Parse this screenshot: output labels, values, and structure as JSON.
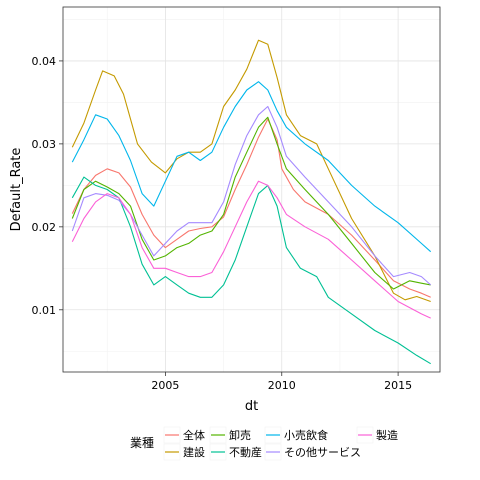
{
  "chart_data": {
    "type": "line",
    "xlabel": "dt",
    "ylabel": "Default_Rate",
    "xlim": [
      2000.6,
      2016.8
    ],
    "ylim": [
      0.0025,
      0.0465
    ],
    "x_ticks": [
      2005,
      2010,
      2015
    ],
    "x_tick_labels": [
      "2005",
      "2010",
      "2015"
    ],
    "y_ticks": [
      0.01,
      0.02,
      0.03,
      0.04
    ],
    "y_tick_labels": [
      "0.01",
      "0.02",
      "0.03",
      "0.04"
    ],
    "grid": true,
    "legend": {
      "title": "業種",
      "position": "bottom"
    },
    "series": [
      {
        "name": "全体",
        "color": "#F8766D",
        "points": [
          [
            2001.0,
            0.0216
          ],
          [
            2001.5,
            0.0245
          ],
          [
            2002.0,
            0.0262
          ],
          [
            2002.5,
            0.027
          ],
          [
            2003.0,
            0.0265
          ],
          [
            2003.5,
            0.0248
          ],
          [
            2004.0,
            0.0215
          ],
          [
            2004.5,
            0.019
          ],
          [
            2005.0,
            0.0175
          ],
          [
            2005.5,
            0.0185
          ],
          [
            2006.0,
            0.0195
          ],
          [
            2006.5,
            0.0198
          ],
          [
            2007.0,
            0.02
          ],
          [
            2007.5,
            0.0212
          ],
          [
            2008.0,
            0.0245
          ],
          [
            2008.5,
            0.0275
          ],
          [
            2009.0,
            0.0308
          ],
          [
            2009.4,
            0.033
          ],
          [
            2009.8,
            0.0305
          ],
          [
            2010.0,
            0.027
          ],
          [
            2010.5,
            0.0245
          ],
          [
            2011.0,
            0.023
          ],
          [
            2012.0,
            0.0215
          ],
          [
            2013.0,
            0.019
          ],
          [
            2014.0,
            0.016
          ],
          [
            2014.8,
            0.0135
          ],
          [
            2015.5,
            0.0125
          ],
          [
            2016.0,
            0.012
          ],
          [
            2016.4,
            0.0115
          ]
        ]
      },
      {
        "name": "建設",
        "color": "#C49A00",
        "points": [
          [
            2001.0,
            0.0296
          ],
          [
            2001.5,
            0.0325
          ],
          [
            2002.0,
            0.0365
          ],
          [
            2002.3,
            0.0388
          ],
          [
            2002.8,
            0.0382
          ],
          [
            2003.2,
            0.036
          ],
          [
            2003.8,
            0.03
          ],
          [
            2004.4,
            0.0278
          ],
          [
            2005.0,
            0.0265
          ],
          [
            2005.5,
            0.0282
          ],
          [
            2006.0,
            0.029
          ],
          [
            2006.5,
            0.029
          ],
          [
            2007.0,
            0.03
          ],
          [
            2007.5,
            0.0345
          ],
          [
            2008.0,
            0.0365
          ],
          [
            2008.5,
            0.039
          ],
          [
            2009.0,
            0.0425
          ],
          [
            2009.4,
            0.042
          ],
          [
            2009.8,
            0.038
          ],
          [
            2010.2,
            0.0335
          ],
          [
            2010.8,
            0.031
          ],
          [
            2011.5,
            0.03
          ],
          [
            2012.0,
            0.027
          ],
          [
            2013.0,
            0.021
          ],
          [
            2014.0,
            0.0165
          ],
          [
            2014.8,
            0.012
          ],
          [
            2015.3,
            0.0112
          ],
          [
            2015.8,
            0.0116
          ],
          [
            2016.4,
            0.011
          ]
        ]
      },
      {
        "name": "卸売",
        "color": "#53B400",
        "points": [
          [
            2001.0,
            0.021
          ],
          [
            2001.5,
            0.0245
          ],
          [
            2002.0,
            0.0255
          ],
          [
            2002.5,
            0.0248
          ],
          [
            2003.0,
            0.024
          ],
          [
            2003.5,
            0.0225
          ],
          [
            2004.0,
            0.0185
          ],
          [
            2004.5,
            0.016
          ],
          [
            2005.0,
            0.0165
          ],
          [
            2005.5,
            0.0175
          ],
          [
            2006.0,
            0.018
          ],
          [
            2006.5,
            0.019
          ],
          [
            2007.0,
            0.0195
          ],
          [
            2007.5,
            0.0215
          ],
          [
            2008.0,
            0.026
          ],
          [
            2008.5,
            0.029
          ],
          [
            2009.0,
            0.032
          ],
          [
            2009.4,
            0.0332
          ],
          [
            2009.8,
            0.03
          ],
          [
            2010.2,
            0.027
          ],
          [
            2011.0,
            0.0245
          ],
          [
            2012.0,
            0.0215
          ],
          [
            2013.0,
            0.018
          ],
          [
            2014.0,
            0.0145
          ],
          [
            2014.8,
            0.0125
          ],
          [
            2015.5,
            0.0135
          ],
          [
            2016.0,
            0.0132
          ],
          [
            2016.4,
            0.013
          ]
        ]
      },
      {
        "name": "不動産",
        "color": "#00C094",
        "points": [
          [
            2001.0,
            0.0235
          ],
          [
            2001.5,
            0.026
          ],
          [
            2002.0,
            0.025
          ],
          [
            2002.5,
            0.0245
          ],
          [
            2003.0,
            0.0235
          ],
          [
            2003.5,
            0.02
          ],
          [
            2004.0,
            0.0155
          ],
          [
            2004.5,
            0.013
          ],
          [
            2005.0,
            0.014
          ],
          [
            2005.5,
            0.013
          ],
          [
            2006.0,
            0.012
          ],
          [
            2006.5,
            0.0115
          ],
          [
            2007.0,
            0.0115
          ],
          [
            2007.5,
            0.013
          ],
          [
            2008.0,
            0.016
          ],
          [
            2008.5,
            0.02
          ],
          [
            2009.0,
            0.024
          ],
          [
            2009.4,
            0.025
          ],
          [
            2009.8,
            0.0225
          ],
          [
            2010.2,
            0.0175
          ],
          [
            2010.8,
            0.015
          ],
          [
            2011.5,
            0.014
          ],
          [
            2012.0,
            0.0115
          ],
          [
            2013.0,
            0.0095
          ],
          [
            2014.0,
            0.0075
          ],
          [
            2015.0,
            0.006
          ],
          [
            2015.8,
            0.0045
          ],
          [
            2016.4,
            0.0035
          ]
        ]
      },
      {
        "name": "小売飲食",
        "color": "#00B6EB",
        "points": [
          [
            2001.0,
            0.0278
          ],
          [
            2001.5,
            0.0305
          ],
          [
            2002.0,
            0.0335
          ],
          [
            2002.5,
            0.033
          ],
          [
            2003.0,
            0.031
          ],
          [
            2003.5,
            0.028
          ],
          [
            2004.0,
            0.024
          ],
          [
            2004.5,
            0.0225
          ],
          [
            2005.0,
            0.0255
          ],
          [
            2005.5,
            0.0285
          ],
          [
            2006.0,
            0.029
          ],
          [
            2006.5,
            0.028
          ],
          [
            2007.0,
            0.029
          ],
          [
            2007.5,
            0.032
          ],
          [
            2008.0,
            0.0345
          ],
          [
            2008.5,
            0.0365
          ],
          [
            2009.0,
            0.0375
          ],
          [
            2009.4,
            0.0365
          ],
          [
            2009.8,
            0.034
          ],
          [
            2010.2,
            0.032
          ],
          [
            2011.0,
            0.03
          ],
          [
            2012.0,
            0.028
          ],
          [
            2013.0,
            0.025
          ],
          [
            2014.0,
            0.0225
          ],
          [
            2015.0,
            0.0205
          ],
          [
            2016.0,
            0.018
          ],
          [
            2016.4,
            0.017
          ]
        ]
      },
      {
        "name": "その他サービス",
        "color": "#A58AFF",
        "points": [
          [
            2001.0,
            0.0195
          ],
          [
            2001.5,
            0.0235
          ],
          [
            2002.0,
            0.024
          ],
          [
            2002.5,
            0.0238
          ],
          [
            2003.0,
            0.0232
          ],
          [
            2003.5,
            0.0215
          ],
          [
            2004.0,
            0.019
          ],
          [
            2004.5,
            0.0165
          ],
          [
            2005.0,
            0.018
          ],
          [
            2005.5,
            0.0195
          ],
          [
            2006.0,
            0.0205
          ],
          [
            2006.5,
            0.0205
          ],
          [
            2007.0,
            0.0205
          ],
          [
            2007.5,
            0.023
          ],
          [
            2008.0,
            0.0275
          ],
          [
            2008.5,
            0.031
          ],
          [
            2009.0,
            0.0335
          ],
          [
            2009.4,
            0.0345
          ],
          [
            2009.8,
            0.032
          ],
          [
            2010.2,
            0.0285
          ],
          [
            2011.0,
            0.026
          ],
          [
            2012.0,
            0.023
          ],
          [
            2013.0,
            0.02
          ],
          [
            2014.0,
            0.0165
          ],
          [
            2014.8,
            0.014
          ],
          [
            2015.5,
            0.0145
          ],
          [
            2016.0,
            0.014
          ],
          [
            2016.4,
            0.013
          ]
        ]
      },
      {
        "name": "製造",
        "color": "#FB61D7",
        "points": [
          [
            2001.0,
            0.0182
          ],
          [
            2001.5,
            0.021
          ],
          [
            2002.0,
            0.023
          ],
          [
            2002.5,
            0.024
          ],
          [
            2003.0,
            0.0235
          ],
          [
            2003.5,
            0.0215
          ],
          [
            2004.0,
            0.0175
          ],
          [
            2004.5,
            0.015
          ],
          [
            2005.0,
            0.015
          ],
          [
            2005.5,
            0.0145
          ],
          [
            2006.0,
            0.014
          ],
          [
            2006.5,
            0.014
          ],
          [
            2007.0,
            0.0145
          ],
          [
            2007.5,
            0.017
          ],
          [
            2008.0,
            0.02
          ],
          [
            2008.5,
            0.023
          ],
          [
            2009.0,
            0.0255
          ],
          [
            2009.4,
            0.025
          ],
          [
            2009.8,
            0.0235
          ],
          [
            2010.2,
            0.0215
          ],
          [
            2011.0,
            0.02
          ],
          [
            2012.0,
            0.0185
          ],
          [
            2013.0,
            0.016
          ],
          [
            2014.0,
            0.0135
          ],
          [
            2015.0,
            0.011
          ],
          [
            2016.0,
            0.0095
          ],
          [
            2016.4,
            0.009
          ]
        ]
      }
    ]
  }
}
